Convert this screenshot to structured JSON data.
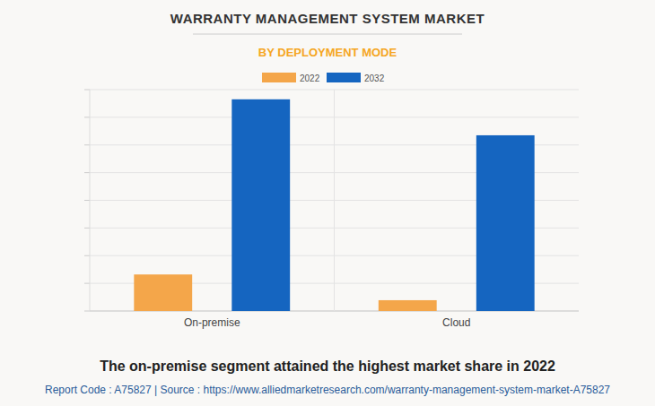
{
  "chart_data": {
    "type": "bar",
    "title": "WARRANTY MANAGEMENT SYSTEM MARKET",
    "subtitle": "BY DEPLOYMENT MODE",
    "categories": [
      "On-premise",
      "Cloud"
    ],
    "series": [
      {
        "name": "2022",
        "color": "#f4a64a",
        "values": [
          1.32,
          0.39
        ]
      },
      {
        "name": "2032",
        "color": "#1565c0",
        "values": [
          7.65,
          6.35
        ]
      }
    ],
    "ylim": [
      0,
      8
    ],
    "yticks": [
      0,
      1,
      2,
      3,
      4,
      5,
      6,
      7,
      8
    ],
    "grid": true,
    "tick_labels": "x",
    "legend": "top",
    "annotations": [
      "The on-premise segment attained the highest market share in 2022",
      "Report Code : A75827  |  Source : https://www.alliedmarketresearch.com/warranty-management-system-market-A75827"
    ]
  }
}
